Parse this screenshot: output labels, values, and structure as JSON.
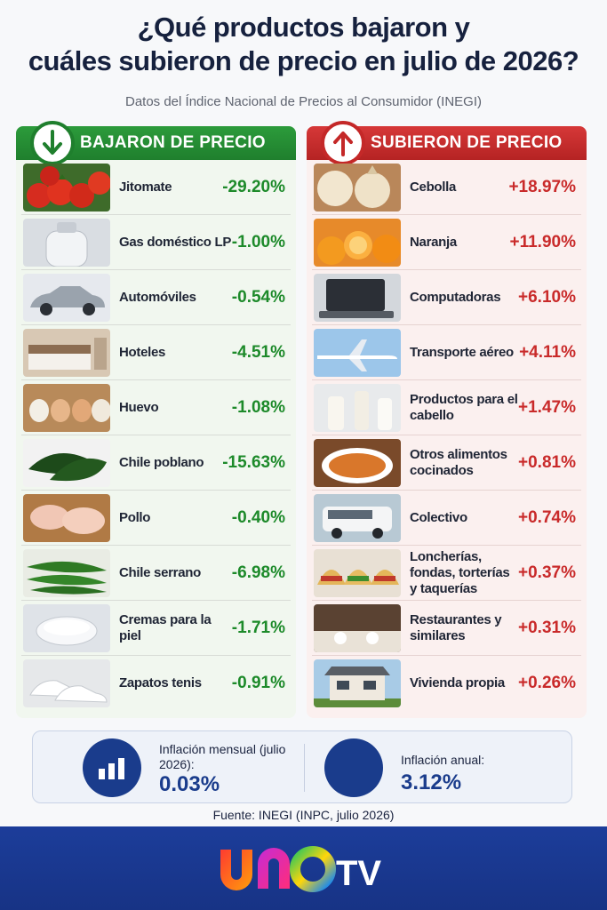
{
  "title_line1": "¿Qué productos bajaron y",
  "title_line2": "cuáles subieron de precio en julio de 2026?",
  "subtitle": "Datos del Índice Nacional de Precios al Consumidor (INEGI)",
  "down": {
    "header": "BAJARON DE PRECIO",
    "items": [
      {
        "label": "Jitomate",
        "value": "-29.20%"
      },
      {
        "label": "Gas doméstico LP",
        "value": "-1.00%"
      },
      {
        "label": "Automóviles",
        "value": "-0.54%"
      },
      {
        "label": "Hoteles",
        "value": "-4.51%"
      },
      {
        "label": "Huevo",
        "value": "-1.08%"
      },
      {
        "label": "Chile poblano",
        "value": "-15.63%"
      },
      {
        "label": "Pollo",
        "value": "-0.40%"
      },
      {
        "label": "Chile serrano",
        "value": "-6.98%"
      },
      {
        "label": "Cremas para la piel",
        "value": "-1.71%"
      },
      {
        "label": "Zapatos tenis",
        "value": "-0.91%"
      }
    ]
  },
  "up": {
    "header": "SUBIERON DE PRECIO",
    "items": [
      {
        "label": "Cebolla",
        "value": "+18.97%"
      },
      {
        "label": "Naranja",
        "value": "+11.90%"
      },
      {
        "label": "Computadoras",
        "value": "+6.10%"
      },
      {
        "label": "Transporte aéreo",
        "value": "+4.11%"
      },
      {
        "label": "Productos para el cabello",
        "value": "+1.47%"
      },
      {
        "label": "Otros alimentos cocinados",
        "value": "+0.81%"
      },
      {
        "label": "Colectivo",
        "value": "+0.74%"
      },
      {
        "label": "Loncherías, fondas, torterías y taquerías",
        "value": "+0.37%"
      },
      {
        "label": "Restaurantes y similares",
        "value": "+0.31%"
      },
      {
        "label": "Vivienda propia",
        "value": "+0.26%"
      }
    ]
  },
  "summary": {
    "monthly_label": "Inflación mensual (julio 2026):",
    "monthly_value": "0.03%",
    "annual_label": "Inflación anual:",
    "annual_value": "3.12%"
  },
  "source": "Fuente: INEGI (INPC, julio 2026)",
  "brand": {
    "logo_text": "UNO TV"
  },
  "colors": {
    "down": "#1d8a2a",
    "up": "#c92a2a",
    "navy": "#1a3c8c"
  }
}
